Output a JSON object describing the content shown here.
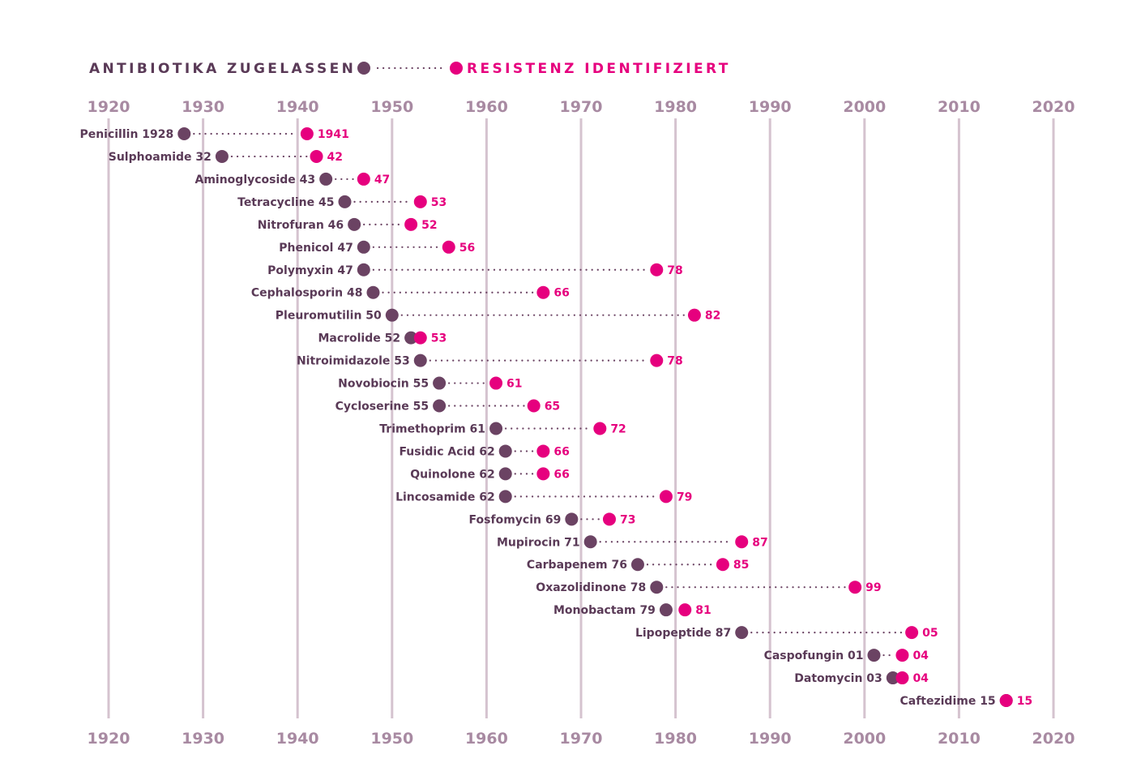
{
  "chart_data": {
    "type": "dumbbell",
    "title": "",
    "xlabel": "",
    "ylabel": "",
    "xlim": [
      1920,
      2020
    ],
    "xticks": [
      "1920",
      "1930",
      "1940",
      "1950",
      "1960",
      "1970",
      "1980",
      "1990",
      "2000",
      "2010",
      "2020"
    ],
    "grid": true,
    "legend": {
      "start_label": "ANTIBIOTIKA ZUGELASSEN",
      "end_label": "RESISTENZ IDENTIFIZIERT",
      "placement": "top-left"
    },
    "colors": {
      "start": "#6b4363",
      "end": "#e6007e",
      "grid": "#d5c3cf",
      "label": "#5a3a57",
      "tick": "#a88aa2"
    },
    "series": [
      {
        "name": "ANTIBIOTIKA ZUGELASSEN",
        "values": [
          1928,
          1932,
          1943,
          1945,
          1946,
          1947,
          1947,
          1948,
          1950,
          1952,
          1953,
          1955,
          1955,
          1961,
          1962,
          1962,
          1962,
          1969,
          1971,
          1976,
          1978,
          1979,
          1987,
          2001,
          2003,
          2015
        ]
      },
      {
        "name": "RESISTENZ IDENTIFIZIERT",
        "values": [
          1941,
          1942,
          1947,
          1953,
          1952,
          1956,
          1978,
          1966,
          1982,
          1953,
          1978,
          1961,
          1965,
          1972,
          1966,
          1966,
          1979,
          1973,
          1987,
          1985,
          1999,
          1981,
          2005,
          2004,
          2004,
          2015
        ]
      }
    ],
    "rows": [
      {
        "label": "Penicillin 1928",
        "value_label": "1941"
      },
      {
        "label": "Sulphoamide 32",
        "value_label": "42"
      },
      {
        "label": "Aminoglycoside 43",
        "value_label": "47"
      },
      {
        "label": "Tetracycline 45",
        "value_label": "53"
      },
      {
        "label": "Nitrofuran 46",
        "value_label": "52"
      },
      {
        "label": "Phenicol 47",
        "value_label": "56"
      },
      {
        "label": "Polymyxin 47",
        "value_label": "78"
      },
      {
        "label": "Cephalosporin 48",
        "value_label": "66"
      },
      {
        "label": "Pleuromutilin 50",
        "value_label": "82"
      },
      {
        "label": "Macrolide 52",
        "value_label": "53"
      },
      {
        "label": "Nitroimidazole 53",
        "value_label": "78"
      },
      {
        "label": "Novobiocin 55",
        "value_label": "61"
      },
      {
        "label": "Cycloserine 55",
        "value_label": "65"
      },
      {
        "label": "Trimethoprim 61",
        "value_label": "72"
      },
      {
        "label": "Fusidic Acid 62",
        "value_label": "66"
      },
      {
        "label": "Quinolone 62",
        "value_label": "66"
      },
      {
        "label": "Lincosamide 62",
        "value_label": "79"
      },
      {
        "label": "Fosfomycin 69",
        "value_label": "73"
      },
      {
        "label": "Mupirocin 71",
        "value_label": "87"
      },
      {
        "label": "Carbapenem 76",
        "value_label": "85"
      },
      {
        "label": "Oxazolidinone 78",
        "value_label": "99"
      },
      {
        "label": "Monobactam 79",
        "value_label": "81"
      },
      {
        "label": "Lipopeptide 87",
        "value_label": "05"
      },
      {
        "label": "Caspofungin 01",
        "value_label": "04"
      },
      {
        "label": "Datomycin 03",
        "value_label": "04"
      },
      {
        "label": "Caftezidime 15",
        "value_label": "15"
      }
    ]
  }
}
